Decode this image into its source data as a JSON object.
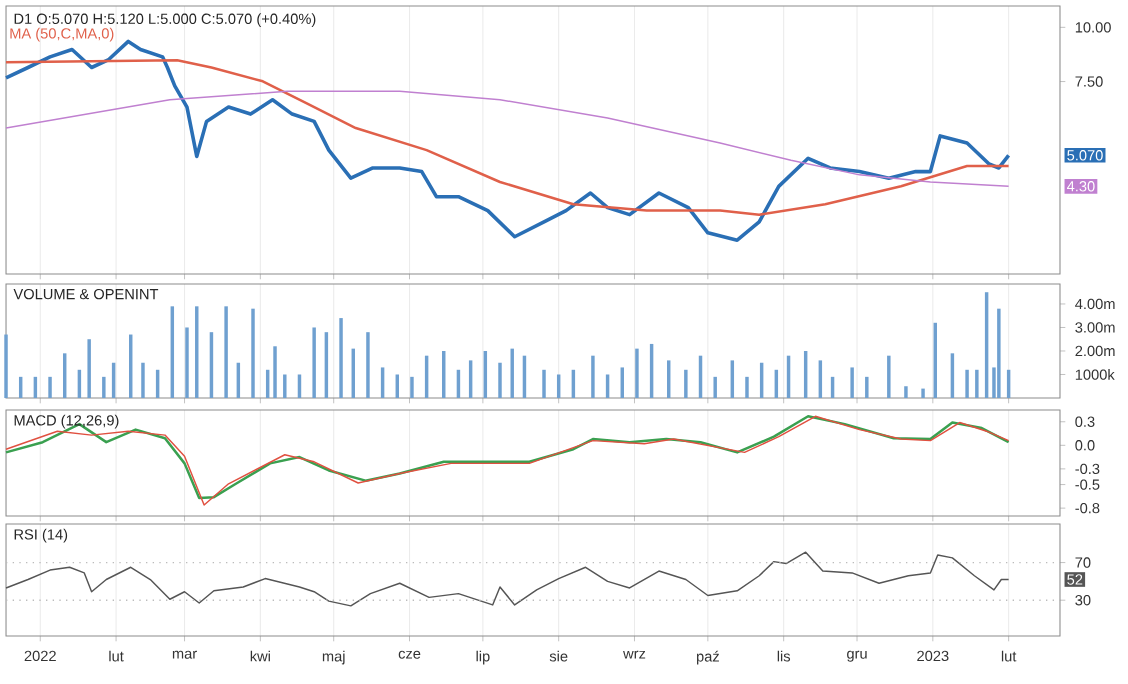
{
  "chart_data": [
    {
      "type": "line",
      "title": "D1 O:5.070 H:5.120 L:5.000 C:5.070 (+0.40%)",
      "log": "y",
      "ylim": [
        2.7,
        11.2
      ],
      "yticks": [
        {
          "value": 10,
          "label": "10.00"
        },
        {
          "value": 7.5,
          "label": "7.50"
        }
      ],
      "xlim": [
        "2021-12-18",
        "2023-02-22"
      ],
      "xticks": [
        {
          "value": "2022-01-01",
          "label": null
        },
        {
          "value": "2022-02-01",
          "label": null
        },
        {
          "value": "2022-03-01",
          "label": null
        },
        {
          "value": "2022-04-01",
          "label": null
        },
        {
          "value": "2022-05-01",
          "label": null
        },
        {
          "value": "2022-06-01",
          "label": null
        },
        {
          "value": "2022-07-01",
          "label": null
        },
        {
          "value": "2022-08-01",
          "label": null
        },
        {
          "value": "2022-09-01",
          "label": null
        },
        {
          "value": "2022-10-01",
          "label": null
        },
        {
          "value": "2022-11-01",
          "label": null
        },
        {
          "value": "2022-12-01",
          "label": null
        },
        {
          "value": "2023-01-01",
          "label": null
        },
        {
          "value": "2023-02-01",
          "label": null
        }
      ],
      "tick_labels": "y",
      "grid": "x",
      "legend": "top left",
      "series": [
        {
          "color": "#2a6fb5",
          "x": [
            "2021-12-18",
            "2021-12-27",
            "2022-01-05",
            "2022-01-14",
            "2022-01-22",
            "2022-01-29",
            "2022-02-06",
            "2022-02-11",
            "2022-02-20",
            "2022-02-22",
            "2022-02-25",
            "2022-03-02",
            "2022-03-06",
            "2022-03-10",
            "2022-03-19",
            "2022-03-28",
            "2022-04-06",
            "2022-04-14",
            "2022-04-23",
            "2022-04-29",
            "2022-05-08",
            "2022-05-17",
            "2022-05-28",
            "2022-06-06",
            "2022-06-12",
            "2022-06-21",
            "2022-07-03",
            "2022-07-14",
            "2022-07-26",
            "2022-08-04",
            "2022-08-14",
            "2022-08-21",
            "2022-08-30",
            "2022-09-11",
            "2022-09-23",
            "2022-10-01",
            "2022-10-13",
            "2022-10-22",
            "2022-10-30",
            "2022-11-11",
            "2022-11-20",
            "2022-12-02",
            "2022-12-14",
            "2022-12-25",
            "2022-12-31",
            "2023-01-04",
            "2023-01-15",
            "2023-01-24",
            "2023-01-28",
            "2023-02-01"
          ],
          "values": [
            7.65,
            8.08,
            8.55,
            8.89,
            8.08,
            8.43,
            9.28,
            8.89,
            8.55,
            8.08,
            7.33,
            6.55,
            5.04,
            6.07,
            6.55,
            6.31,
            6.81,
            6.31,
            6.07,
            5.21,
            4.49,
            4.74,
            4.74,
            4.65,
            4.07,
            4.07,
            3.78,
            3.29,
            3.56,
            3.78,
            4.15,
            3.84,
            3.7,
            4.15,
            3.84,
            3.36,
            3.23,
            3.56,
            4.3,
            4.99,
            4.74,
            4.65,
            4.49,
            4.65,
            4.65,
            5.62,
            5.41,
            4.84,
            4.74,
            5.07
          ]
        },
        {
          "name": "MA (50,C,MA,0)",
          "color": "#e0604a",
          "x": [
            "2021-12-18",
            "2022-02-26",
            "2022-03-12",
            "2022-04-02",
            "2022-04-20",
            "2022-05-10",
            "2022-06-08",
            "2022-07-08",
            "2022-08-07",
            "2022-09-06",
            "2022-10-06",
            "2022-10-22",
            "2022-11-18",
            "2022-12-19",
            "2023-01-15",
            "2023-02-01"
          ],
          "values": [
            8.31,
            8.4,
            8.08,
            7.51,
            6.68,
            5.86,
            5.21,
            4.4,
            3.91,
            3.78,
            3.78,
            3.7,
            3.91,
            4.3,
            4.79,
            4.79
          ]
        },
        {
          "color": "#c080d0",
          "x": [
            "2021-12-18",
            "2022-02-23",
            "2022-04-12",
            "2022-05-28",
            "2022-07-08",
            "2022-08-21",
            "2022-10-06",
            "2022-11-04",
            "2022-12-02",
            "2022-12-31",
            "2023-02-01"
          ],
          "values": [
            5.86,
            6.81,
            7.12,
            7.12,
            6.81,
            6.18,
            5.41,
            4.94,
            4.57,
            4.4,
            4.3
          ]
        }
      ],
      "annotations": [
        {
          "text": "5.070",
          "y": 5.07
        },
        {
          "text": "4.30",
          "y": 4.3
        }
      ]
    },
    {
      "type": "bar",
      "title": "VOLUME & OPENINT",
      "color": "#6fa0d0",
      "ylim": [
        0,
        4850000
      ],
      "yticks": [
        {
          "value": 1000000,
          "label": "1000k"
        },
        {
          "value": 2000000,
          "label": "2.00m"
        },
        {
          "value": 3000000,
          "label": "3.00m"
        },
        {
          "value": 4000000,
          "label": "4.00m"
        }
      ],
      "xlim": [
        "2021-12-18",
        "2023-02-22"
      ],
      "tick_labels": "y",
      "grid": "x",
      "xticks": [
        {
          "value": "2022-01-01",
          "label": null
        },
        {
          "value": "2022-02-01",
          "label": null
        },
        {
          "value": "2022-03-01",
          "label": null
        },
        {
          "value": "2022-04-01",
          "label": null
        },
        {
          "value": "2022-05-01",
          "label": null
        },
        {
          "value": "2022-06-01",
          "label": null
        },
        {
          "value": "2022-07-01",
          "label": null
        },
        {
          "value": "2022-08-01",
          "label": null
        },
        {
          "value": "2022-09-01",
          "label": null
        },
        {
          "value": "2022-10-01",
          "label": null
        },
        {
          "value": "2022-11-01",
          "label": null
        },
        {
          "value": "2022-12-01",
          "label": null
        },
        {
          "value": "2023-01-01",
          "label": null
        },
        {
          "value": "2023-02-01",
          "label": null
        }
      ],
      "x": [
        "2021-12-18",
        "2021-12-24",
        "2021-12-30",
        "2022-01-05",
        "2022-01-11",
        "2022-01-17",
        "2022-01-21",
        "2022-01-27",
        "2022-01-31",
        "2022-02-07",
        "2022-02-12",
        "2022-02-18",
        "2022-02-24",
        "2022-03-02",
        "2022-03-06",
        "2022-03-12",
        "2022-03-18",
        "2022-03-23",
        "2022-03-29",
        "2022-04-04",
        "2022-04-07",
        "2022-04-11",
        "2022-04-17",
        "2022-04-23",
        "2022-04-28",
        "2022-05-04",
        "2022-05-09",
        "2022-05-15",
        "2022-05-21",
        "2022-05-27",
        "2022-06-02",
        "2022-06-08",
        "2022-06-15",
        "2022-06-21",
        "2022-06-26",
        "2022-07-02",
        "2022-07-08",
        "2022-07-13",
        "2022-07-18",
        "2022-07-26",
        "2022-08-01",
        "2022-08-07",
        "2022-08-15",
        "2022-08-21",
        "2022-08-27",
        "2022-09-02",
        "2022-09-08",
        "2022-09-15",
        "2022-09-22",
        "2022-09-28",
        "2022-10-04",
        "2022-10-11",
        "2022-10-17",
        "2022-10-23",
        "2022-10-29",
        "2022-11-03",
        "2022-11-10",
        "2022-11-16",
        "2022-11-21",
        "2022-11-29",
        "2022-12-05",
        "2022-12-14",
        "2022-12-21",
        "2022-12-28",
        "2023-01-02",
        "2023-01-09",
        "2023-01-15",
        "2023-01-19",
        "2023-01-23",
        "2023-01-26",
        "2023-01-28",
        "2023-02-01"
      ],
      "values": [
        2700000,
        900000,
        900000,
        900000,
        1900000,
        1200000,
        2500000,
        900000,
        1500000,
        2700000,
        1500000,
        1200000,
        3900000,
        3000000,
        3900000,
        2800000,
        3900000,
        1500000,
        3800000,
        1200000,
        2200000,
        1000000,
        1000000,
        3000000,
        2800000,
        3400000,
        2100000,
        2800000,
        1300000,
        1000000,
        900000,
        1800000,
        2000000,
        1200000,
        1600000,
        2000000,
        1500000,
        2100000,
        1800000,
        1200000,
        1000000,
        1200000,
        1800000,
        1000000,
        1300000,
        2100000,
        2300000,
        1600000,
        1200000,
        1800000,
        900000,
        1600000,
        900000,
        1500000,
        1200000,
        1800000,
        2000000,
        1600000,
        900000,
        1300000,
        900000,
        1800000,
        500000,
        400000,
        3200000,
        1900000,
        1200000,
        1200000,
        4500000,
        1300000,
        3800000,
        1200000
      ]
    },
    {
      "type": "line",
      "title": "MACD (12,26,9)",
      "ylim": [
        -0.9,
        0.45
      ],
      "yticks": [
        0.3,
        {
          "value": 0,
          "label": "0.0"
        },
        -0.3,
        -0.5,
        -0.8
      ],
      "xlim": [
        "2021-12-18",
        "2023-02-22"
      ],
      "tick_labels": "y",
      "grid": "x",
      "xticks": [
        {
          "value": "2022-01-01",
          "label": null
        },
        {
          "value": "2022-02-01",
          "label": null
        },
        {
          "value": "2022-03-01",
          "label": null
        },
        {
          "value": "2022-04-01",
          "label": null
        },
        {
          "value": "2022-05-01",
          "label": null
        },
        {
          "value": "2022-06-01",
          "label": null
        },
        {
          "value": "2022-07-01",
          "label": null
        },
        {
          "value": "2022-08-01",
          "label": null
        },
        {
          "value": "2022-09-01",
          "label": null
        },
        {
          "value": "2022-10-01",
          "label": null
        },
        {
          "value": "2022-11-01",
          "label": null
        },
        {
          "value": "2022-12-01",
          "label": null
        },
        {
          "value": "2023-01-01",
          "label": null
        },
        {
          "value": "2023-02-01",
          "label": null
        }
      ],
      "series": [
        {
          "color": "#3aa050",
          "x": [
            "2021-12-18",
            "2022-01-02",
            "2022-01-17",
            "2022-01-28",
            "2022-02-09",
            "2022-02-21",
            "2022-03-01",
            "2022-03-07",
            "2022-03-13",
            "2022-03-22",
            "2022-04-05",
            "2022-04-17",
            "2022-04-29",
            "2022-05-14",
            "2022-05-28",
            "2022-06-15",
            "2022-07-02",
            "2022-07-20",
            "2022-08-07",
            "2022-08-15",
            "2022-08-30",
            "2022-09-14",
            "2022-09-28",
            "2022-10-13",
            "2022-10-28",
            "2022-11-11",
            "2022-11-26",
            "2022-12-16",
            "2022-12-31",
            "2023-01-09",
            "2023-01-21",
            "2023-02-01"
          ],
          "values": [
            -0.09,
            0.04,
            0.27,
            0.04,
            0.2,
            0.09,
            -0.23,
            -0.67,
            -0.66,
            -0.49,
            -0.23,
            -0.15,
            -0.32,
            -0.45,
            -0.36,
            -0.21,
            -0.21,
            -0.21,
            -0.05,
            0.08,
            0.04,
            0.08,
            0.04,
            -0.09,
            0.11,
            0.37,
            0.27,
            0.09,
            0.08,
            0.29,
            0.22,
            0.04
          ]
        },
        {
          "color": "#e05040",
          "x": [
            "2021-12-18",
            "2022-01-08",
            "2022-01-22",
            "2022-02-06",
            "2022-02-21",
            "2022-03-01",
            "2022-03-09",
            "2022-03-19",
            "2022-04-11",
            "2022-04-23",
            "2022-05-11",
            "2022-05-28",
            "2022-06-18",
            "2022-07-20",
            "2022-08-15",
            "2022-09-05",
            "2022-09-17",
            "2022-10-16",
            "2022-10-30",
            "2022-11-14",
            "2022-12-02",
            "2022-12-19",
            "2022-12-31",
            "2023-01-12",
            "2023-01-23",
            "2023-02-01"
          ],
          "values": [
            -0.05,
            0.18,
            0.13,
            0.18,
            0.13,
            -0.14,
            -0.76,
            -0.49,
            -0.12,
            -0.21,
            -0.48,
            -0.36,
            -0.23,
            -0.23,
            0.06,
            0.02,
            0.08,
            -0.09,
            0.11,
            0.37,
            0.2,
            0.08,
            0.06,
            0.29,
            0.18,
            0.06
          ]
        }
      ]
    },
    {
      "type": "line",
      "title": "RSI (14)",
      "ylim": [
        -8,
        111
      ],
      "yticks": [
        70,
        30
      ],
      "xlim": [
        "2021-12-18",
        "2023-02-22"
      ],
      "grid": "x",
      "xticks": [
        {
          "value": "2022-01-01",
          "label": "2022"
        },
        {
          "value": "2022-02-01",
          "label": "lut"
        },
        {
          "value": "2022-03-01",
          "label": "mar"
        },
        {
          "value": "2022-04-01",
          "label": "kwi"
        },
        {
          "value": "2022-05-01",
          "label": "maj"
        },
        {
          "value": "2022-06-01",
          "label": "cze"
        },
        {
          "value": "2022-07-01",
          "label": "lip"
        },
        {
          "value": "2022-08-01",
          "label": "sie"
        },
        {
          "value": "2022-09-01",
          "label": "wrz"
        },
        {
          "value": "2022-10-01",
          "label": "paź"
        },
        {
          "value": "2022-11-01",
          "label": "lis"
        },
        {
          "value": "2022-12-01",
          "label": "gru"
        },
        {
          "value": "2023-01-01",
          "label": "2023"
        },
        {
          "value": "2023-02-01",
          "label": "lut"
        }
      ],
      "ref_lines": [
        {
          "axis": "y",
          "value": 70,
          "color": "#bbbbbb",
          "line_style": "dotted"
        },
        {
          "axis": "y",
          "value": 30,
          "color": "#bbbbbb",
          "line_style": "dotted"
        }
      ],
      "series": [
        {
          "color": "#555555",
          "x": [
            "2021-12-18",
            "2021-12-27",
            "2022-01-05",
            "2022-01-13",
            "2022-01-19",
            "2022-01-22",
            "2022-01-28",
            "2022-02-07",
            "2022-02-15",
            "2022-02-23",
            "2022-03-01",
            "2022-03-07",
            "2022-03-13",
            "2022-03-25",
            "2022-04-03",
            "2022-04-17",
            "2022-04-23",
            "2022-04-29",
            "2022-05-08",
            "2022-05-16",
            "2022-05-28",
            "2022-06-09",
            "2022-06-21",
            "2022-07-05",
            "2022-07-08",
            "2022-07-14",
            "2022-07-23",
            "2022-08-01",
            "2022-08-12",
            "2022-08-21",
            "2022-08-30",
            "2022-09-11",
            "2022-09-22",
            "2022-10-01",
            "2022-10-13",
            "2022-10-22",
            "2022-10-28",
            "2022-11-02",
            "2022-11-10",
            "2022-11-17",
            "2022-11-29",
            "2022-12-10",
            "2022-12-22",
            "2022-12-31",
            "2023-01-03",
            "2023-01-09",
            "2023-01-18",
            "2023-01-26",
            "2023-01-29",
            "2023-02-01"
          ],
          "values": [
            43,
            52,
            62,
            65,
            59,
            39,
            52,
            65,
            52,
            31,
            39,
            27,
            40,
            44,
            53,
            44,
            39,
            29,
            24,
            37,
            48,
            33,
            37,
            25,
            44,
            25,
            41,
            53,
            65,
            50,
            43,
            61,
            52,
            35,
            40,
            56,
            71,
            69,
            81,
            61,
            59,
            48,
            56,
            59,
            78,
            75,
            56,
            41,
            52,
            52
          ]
        }
      ],
      "annotations": [
        {
          "text": "52",
          "y": 52
        }
      ]
    }
  ]
}
